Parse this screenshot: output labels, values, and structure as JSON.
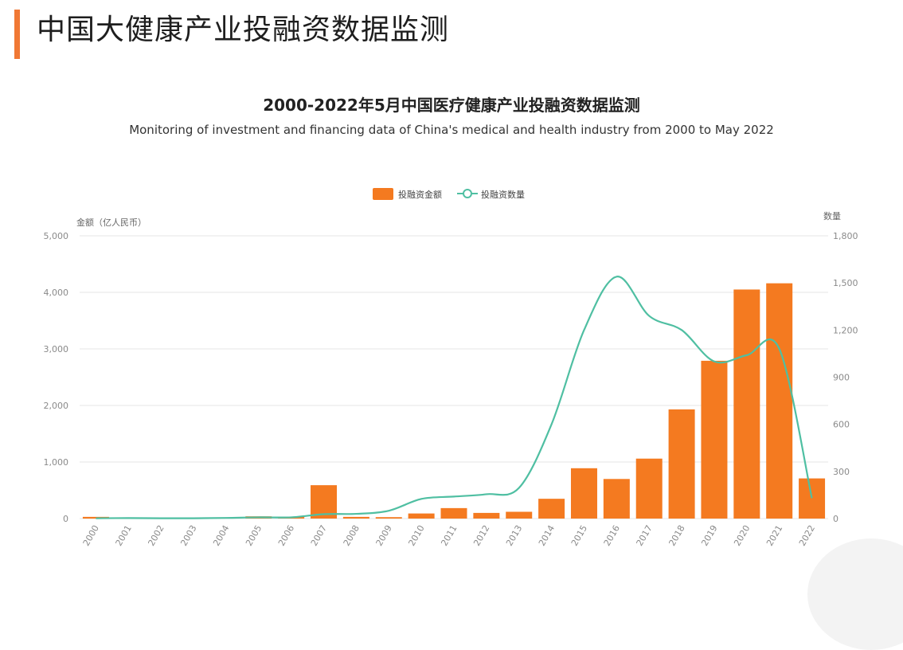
{
  "page": {
    "title": "中国大健康产业投融资数据监测"
  },
  "colors": {
    "accent": "#f07834",
    "bar": "#f47a20",
    "line": "#4fbfa2",
    "grid": "#e6e6e6",
    "axis_text": "#8a8a8a"
  },
  "chart_data": {
    "type": "bar",
    "title": "2000-2022年5月中国医疗健康产业投融资数据监测",
    "subtitle": "Monitoring of investment and financing data of China's medical and health industry from 2000 to May 2022",
    "categories": [
      "2000",
      "2001",
      "2002",
      "2003",
      "2004",
      "2005",
      "2006",
      "2007",
      "2008",
      "2009",
      "2010",
      "2011",
      "2012",
      "2013",
      "2014",
      "2015",
      "2016",
      "2017",
      "2018",
      "2019",
      "2020",
      "2021",
      "2022"
    ],
    "series": [
      {
        "name": "投融资金额",
        "type": "bar",
        "axis": "left",
        "values": [
          30,
          20,
          10,
          8,
          15,
          40,
          30,
          590,
          30,
          25,
          90,
          185,
          100,
          120,
          350,
          890,
          700,
          1060,
          1930,
          2790,
          4050,
          4160,
          710
        ]
      },
      {
        "name": "投融资数量",
        "type": "line",
        "axis": "right",
        "values": [
          2,
          3,
          2,
          2,
          4,
          8,
          8,
          28,
          30,
          50,
          125,
          140,
          155,
          195,
          600,
          1200,
          1540,
          1290,
          1200,
          1000,
          1040,
          1080,
          130
        ]
      }
    ],
    "y_left": {
      "label": "金额（亿人民币）",
      "range": [
        0,
        5000
      ],
      "ticks": [
        "0",
        "1,000",
        "2,000",
        "3,000",
        "4,000",
        "5,000"
      ]
    },
    "y_right": {
      "label": "数量",
      "range": [
        0,
        1800
      ],
      "ticks": [
        "0",
        "300",
        "600",
        "900",
        "1,200",
        "1,500",
        "1,800"
      ]
    },
    "grid": true,
    "legend": "top-center"
  }
}
